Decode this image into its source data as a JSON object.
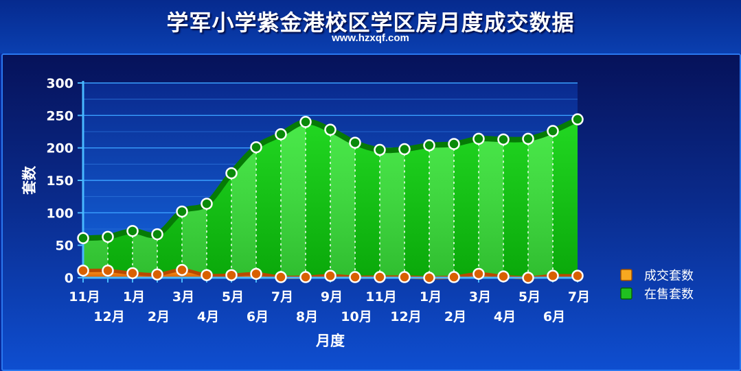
{
  "header": {
    "title": "学军小学紫金港校区学区房月度成交数据",
    "subtitle": "www.hzxqf.com"
  },
  "chart_data": {
    "type": "area",
    "xlabel": "月度",
    "ylabel": "套数",
    "ylim": [
      0,
      300
    ],
    "yticks": [
      0,
      50,
      100,
      150,
      200,
      250,
      300
    ],
    "categories": [
      "11月",
      "12月",
      "1月",
      "2月",
      "3月",
      "4月",
      "5月",
      "6月",
      "7月",
      "8月",
      "9月",
      "10月",
      "11月",
      "12月",
      "1月",
      "2月",
      "3月",
      "4月",
      "5月",
      "6月",
      "7月"
    ],
    "series": [
      {
        "name": "成交套数",
        "color": "#f08a10",
        "values": [
          11,
          11,
          7,
          5,
          12,
          4,
          4,
          6,
          1,
          1,
          3,
          1,
          1,
          1,
          0,
          1,
          6,
          2,
          0,
          3,
          3
        ]
      },
      {
        "name": "在售套数",
        "color": "#10c010",
        "values": [
          61,
          63,
          72,
          67,
          102,
          114,
          161,
          201,
          221,
          240,
          228,
          208,
          197,
          198,
          204,
          206,
          214,
          213,
          214,
          226,
          244
        ]
      }
    ],
    "grid": true,
    "legend_position": "right"
  }
}
